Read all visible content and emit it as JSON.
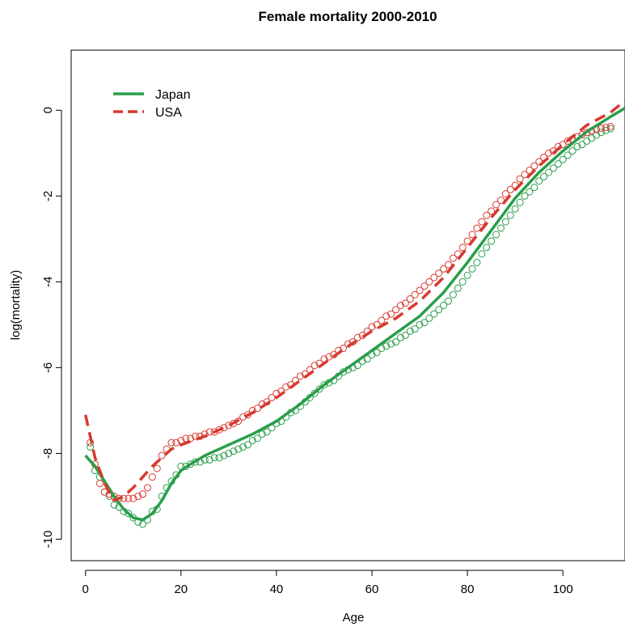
{
  "chart_data": {
    "type": "line",
    "title": "Female mortality 2000-2010",
    "xlabel": "Age",
    "ylabel": "log(mortality)",
    "xlim": [
      -3,
      113
    ],
    "ylim": [
      -10.5,
      1.4
    ],
    "xticks": [
      0,
      20,
      40,
      60,
      80,
      100
    ],
    "yticks": [
      -10,
      -8,
      -6,
      -4,
      -2,
      0
    ],
    "grid": false,
    "legend_position": "top-left",
    "series": [
      {
        "name": "Japan",
        "color": "#2a9d4b",
        "style": "solid",
        "x": [
          0,
          2,
          4,
          6,
          8,
          10,
          12,
          14,
          16,
          18,
          20,
          22,
          25,
          30,
          35,
          40,
          45,
          50,
          55,
          60,
          65,
          70,
          75,
          80,
          85,
          90,
          95,
          100,
          105,
          110,
          113
        ],
        "y": [
          -8.05,
          -8.3,
          -8.65,
          -9.0,
          -9.3,
          -9.5,
          -9.55,
          -9.4,
          -9.1,
          -8.7,
          -8.4,
          -8.25,
          -8.05,
          -7.8,
          -7.55,
          -7.25,
          -6.85,
          -6.4,
          -6.0,
          -5.6,
          -5.2,
          -4.8,
          -4.25,
          -3.55,
          -2.8,
          -2.05,
          -1.45,
          -0.95,
          -0.5,
          -0.15,
          0.05
        ],
        "observed_x": [
          1,
          2,
          3,
          4,
          5,
          6,
          7,
          8,
          9,
          10,
          11,
          12,
          13,
          14,
          15,
          16,
          17,
          18,
          19,
          20,
          21,
          22,
          23,
          24,
          25,
          26,
          27,
          28,
          29,
          30,
          31,
          32,
          33,
          34,
          35,
          36,
          37,
          38,
          39,
          40,
          41,
          42,
          43,
          44,
          45,
          46,
          47,
          48,
          49,
          50,
          51,
          52,
          53,
          54,
          55,
          56,
          57,
          58,
          59,
          60,
          61,
          62,
          63,
          64,
          65,
          66,
          67,
          68,
          69,
          70,
          71,
          72,
          73,
          74,
          75,
          76,
          77,
          78,
          79,
          80,
          81,
          82,
          83,
          84,
          85,
          86,
          87,
          88,
          89,
          90,
          91,
          92,
          93,
          94,
          95,
          96,
          97,
          98,
          99,
          100,
          101,
          102,
          103,
          104,
          105,
          106,
          107,
          108,
          109,
          110
        ],
        "observed_y": [
          -7.85,
          -8.4,
          -8.55,
          -8.9,
          -9.0,
          -9.2,
          -9.25,
          -9.35,
          -9.4,
          -9.5,
          -9.6,
          -9.65,
          -9.55,
          -9.35,
          -9.3,
          -9.0,
          -8.8,
          -8.65,
          -8.5,
          -8.3,
          -8.3,
          -8.25,
          -8.2,
          -8.2,
          -8.15,
          -8.15,
          -8.1,
          -8.1,
          -8.05,
          -8.0,
          -7.95,
          -7.9,
          -7.85,
          -7.8,
          -7.7,
          -7.65,
          -7.55,
          -7.5,
          -7.4,
          -7.3,
          -7.25,
          -7.15,
          -7.05,
          -7.0,
          -6.9,
          -6.8,
          -6.7,
          -6.6,
          -6.5,
          -6.4,
          -6.35,
          -6.3,
          -6.2,
          -6.1,
          -6.05,
          -6.0,
          -5.95,
          -5.85,
          -5.8,
          -5.7,
          -5.65,
          -5.55,
          -5.5,
          -5.45,
          -5.4,
          -5.3,
          -5.25,
          -5.15,
          -5.1,
          -5.0,
          -4.95,
          -4.85,
          -4.75,
          -4.65,
          -4.55,
          -4.45,
          -4.3,
          -4.15,
          -4.0,
          -3.85,
          -3.7,
          -3.55,
          -3.35,
          -3.2,
          -3.05,
          -2.9,
          -2.75,
          -2.6,
          -2.45,
          -2.3,
          -2.15,
          -2.0,
          -1.9,
          -1.8,
          -1.65,
          -1.55,
          -1.45,
          -1.35,
          -1.25,
          -1.15,
          -1.05,
          -0.95,
          -0.85,
          -0.8,
          -0.72,
          -0.65,
          -0.58,
          -0.52,
          -0.47,
          -0.43
        ]
      },
      {
        "name": "USA",
        "color": "#d63a2f",
        "style": "dashed",
        "x": [
          0,
          2,
          4,
          6,
          8,
          10,
          12,
          14,
          16,
          18,
          20,
          22,
          25,
          30,
          35,
          40,
          45,
          50,
          55,
          60,
          65,
          70,
          75,
          80,
          85,
          90,
          95,
          100,
          105,
          110,
          113
        ],
        "y": [
          -7.1,
          -8.1,
          -8.7,
          -9.1,
          -9.0,
          -8.8,
          -8.55,
          -8.3,
          -8.1,
          -7.9,
          -7.8,
          -7.72,
          -7.6,
          -7.35,
          -7.05,
          -6.7,
          -6.3,
          -5.9,
          -5.5,
          -5.15,
          -4.85,
          -4.45,
          -3.9,
          -3.2,
          -2.5,
          -1.85,
          -1.3,
          -0.8,
          -0.35,
          -0.05,
          0.22
        ],
        "observed_x": [
          1,
          2,
          3,
          4,
          5,
          6,
          7,
          8,
          9,
          10,
          11,
          12,
          13,
          14,
          15,
          16,
          17,
          18,
          19,
          20,
          21,
          22,
          23,
          24,
          25,
          26,
          27,
          28,
          29,
          30,
          31,
          32,
          33,
          34,
          35,
          36,
          37,
          38,
          39,
          40,
          41,
          42,
          43,
          44,
          45,
          46,
          47,
          48,
          49,
          50,
          51,
          52,
          53,
          54,
          55,
          56,
          57,
          58,
          59,
          60,
          61,
          62,
          63,
          64,
          65,
          66,
          67,
          68,
          69,
          70,
          71,
          72,
          73,
          74,
          75,
          76,
          77,
          78,
          79,
          80,
          81,
          82,
          83,
          84,
          85,
          86,
          87,
          88,
          89,
          90,
          91,
          92,
          93,
          94,
          95,
          96,
          97,
          98,
          99,
          100,
          101,
          102,
          103,
          104,
          105,
          106,
          107,
          108,
          109,
          110
        ],
        "observed_y": [
          -7.75,
          -8.25,
          -8.7,
          -8.9,
          -8.95,
          -9.0,
          -9.05,
          -9.05,
          -9.05,
          -9.05,
          -9.0,
          -8.95,
          -8.8,
          -8.55,
          -8.35,
          -8.05,
          -7.9,
          -7.75,
          -7.75,
          -7.7,
          -7.65,
          -7.65,
          -7.6,
          -7.6,
          -7.55,
          -7.5,
          -7.5,
          -7.45,
          -7.4,
          -7.35,
          -7.3,
          -7.25,
          -7.15,
          -7.1,
          -7.0,
          -6.95,
          -6.85,
          -6.8,
          -6.7,
          -6.6,
          -6.55,
          -6.45,
          -6.4,
          -6.3,
          -6.2,
          -6.15,
          -6.05,
          -5.95,
          -5.9,
          -5.8,
          -5.75,
          -5.7,
          -5.6,
          -5.55,
          -5.45,
          -5.4,
          -5.3,
          -5.25,
          -5.15,
          -5.05,
          -5.0,
          -4.9,
          -4.8,
          -4.75,
          -4.65,
          -4.55,
          -4.5,
          -4.4,
          -4.3,
          -4.2,
          -4.1,
          -4.0,
          -3.9,
          -3.8,
          -3.7,
          -3.6,
          -3.45,
          -3.35,
          -3.2,
          -3.05,
          -2.9,
          -2.75,
          -2.6,
          -2.45,
          -2.35,
          -2.2,
          -2.1,
          -1.95,
          -1.85,
          -1.75,
          -1.6,
          -1.5,
          -1.4,
          -1.3,
          -1.2,
          -1.1,
          -1.0,
          -0.95,
          -0.85,
          -0.8,
          -0.72,
          -0.67,
          -0.62,
          -0.57,
          -0.52,
          -0.48,
          -0.45,
          -0.42,
          -0.4,
          -0.38
        ]
      }
    ]
  }
}
